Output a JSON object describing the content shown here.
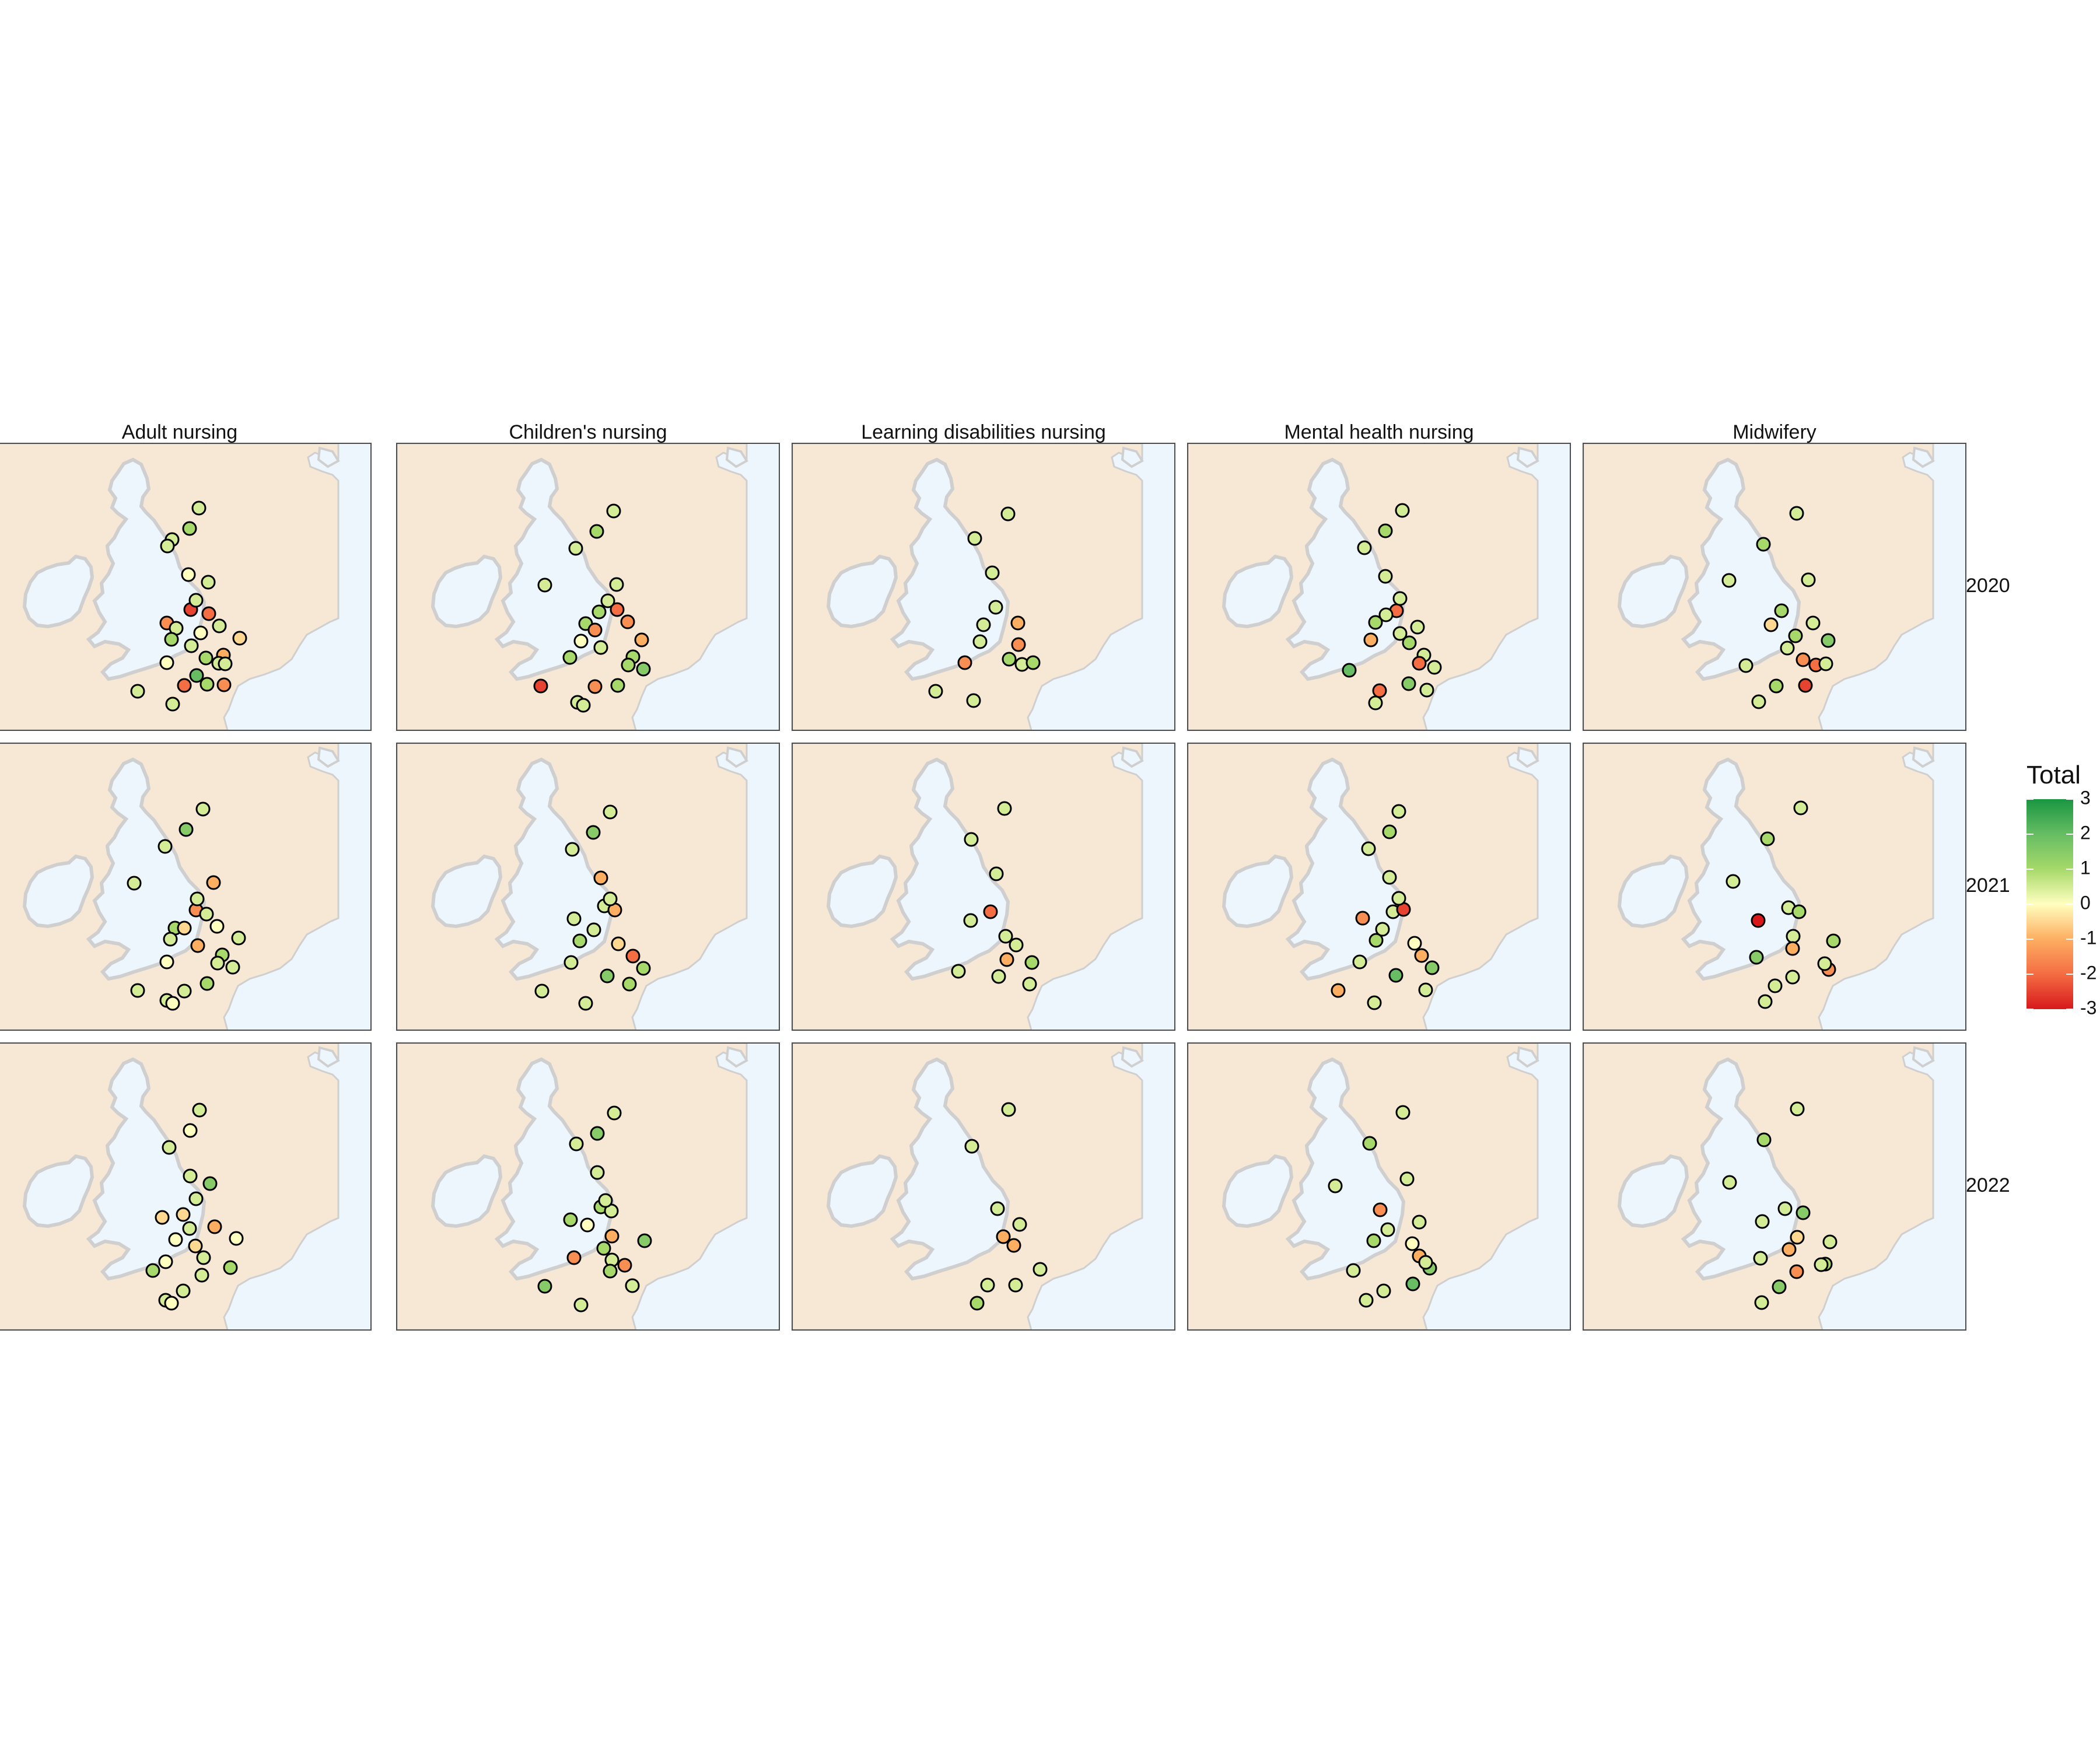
{
  "columns": [
    "Adult nursing",
    "Children's nursing",
    "Learning disabilities nursing",
    "Mental health nursing",
    "Midwifery"
  ],
  "rows": [
    "2020",
    "2021",
    "2022"
  ],
  "legend": {
    "title": "Total",
    "ticks": [
      3,
      2,
      1,
      0,
      -1,
      -2,
      -3
    ],
    "tick_labels": [
      "3",
      "2",
      "1",
      "0",
      "-1",
      "-2",
      "-3"
    ],
    "range": [
      -3,
      3
    ]
  },
  "colors": {
    "sea": "#eef6fd",
    "land_mainland": "#f7e8d6",
    "uk_land": "#eef6fd",
    "coast": "#cfcfcf",
    "scale": [
      "#d7191c",
      "#f46d43",
      "#fdae61",
      "#ffffbf",
      "#a6d96a",
      "#66bd63",
      "#1a9641"
    ]
  },
  "chart_data": {
    "type": "scatter",
    "description_of_values": "Each map shows institutions as points coloured by Total on a diverging red-yellow-green scale",
    "xlabel": "",
    "ylabel": "",
    "facets": [
      {
        "column": "Adult nursing",
        "row": "2020",
        "values": [
          0.5,
          1,
          0.5,
          0.5,
          0,
          0.5,
          -2.5,
          -2,
          0.5,
          -1.5,
          0.5,
          0,
          1,
          0.5,
          -0.5,
          -1,
          1,
          0.5,
          2,
          1,
          0,
          0.5,
          -2,
          -1.5,
          0.5,
          0.5,
          0.5
        ]
      },
      {
        "column": "Adult nursing",
        "row": "2021",
        "values": [
          0.5,
          1.5,
          0.5,
          0.5,
          -1,
          -1.5,
          0.5,
          0,
          1,
          -0.5,
          0.5,
          -1,
          0.5,
          1,
          0.5,
          0.5,
          1,
          0,
          0.5,
          0.5,
          0.5,
          0,
          0.5
        ]
      },
      {
        "column": "Adult nursing",
        "row": "2022",
        "values": [
          0.5,
          0,
          0.5,
          0.5,
          1.5,
          -0.5,
          -1,
          -0.5,
          0.5,
          0,
          -0.5,
          0,
          0.5,
          1,
          0.5,
          0,
          1,
          0.5,
          0.5,
          0,
          0.5
        ]
      },
      {
        "column": "Children's nursing",
        "row": "2020",
        "values": [
          0.5,
          1,
          0.5,
          0.5,
          0.5,
          1,
          -2,
          -1.5,
          1,
          -1.5,
          0,
          0.5,
          -1,
          1,
          1.5,
          1,
          1,
          1,
          -2.5,
          -1.5,
          0.5,
          0.5,
          0.5
        ]
      },
      {
        "column": "Children's nursing",
        "row": "2021",
        "values": [
          0.5,
          1.5,
          0.5,
          -1,
          0.5,
          -1,
          0.5,
          0.5,
          1,
          -0.5,
          -2,
          1,
          1.5,
          0.5,
          0.5,
          1,
          0.5,
          0.5
        ]
      },
      {
        "column": "Children's nursing",
        "row": "2022",
        "values": [
          0.5,
          1.5,
          0.5,
          0.5,
          1,
          0.5,
          1,
          0,
          -1,
          1,
          1.5,
          0.5,
          -1.5,
          1,
          -1.5,
          1.5,
          0.5,
          0.5,
          0.5
        ]
      },
      {
        "column": "Learning disabilities nursing",
        "row": "2020",
        "values": [
          0.5,
          0.5,
          0.5,
          0.5,
          -1,
          0.5,
          0.5,
          -1.5,
          1,
          0.5,
          -1.5,
          0.5,
          0.5,
          1
        ]
      },
      {
        "column": "Learning disabilities nursing",
        "row": "2021",
        "values": [
          0.5,
          0.5,
          0.5,
          -2,
          0.5,
          0.5,
          0.5,
          -1,
          0.5,
          0.5,
          0.5,
          1
        ]
      },
      {
        "column": "Learning disabilities nursing",
        "row": "2022",
        "values": [
          0.5,
          0.5,
          0.5,
          0.5,
          -1,
          -1,
          0.5,
          0.5,
          0.5,
          1
        ]
      },
      {
        "column": "Mental health nursing",
        "row": "2020",
        "values": [
          0.5,
          1,
          0.5,
          0.5,
          -2,
          0.5,
          0.5,
          1,
          0.5,
          -1,
          1,
          0.5,
          0.5,
          -2,
          1.5,
          2,
          -2,
          0.5,
          0.5,
          0.5
        ]
      },
      {
        "column": "Mental health nursing",
        "row": "2021",
        "values": [
          0.5,
          1,
          0.5,
          0.5,
          0.5,
          -2.5,
          -1.5,
          0.5,
          1,
          0,
          -1,
          1.5,
          2,
          0.5,
          -1,
          0.5,
          0.5,
          0.5
        ]
      },
      {
        "column": "Mental health nursing",
        "row": "2022",
        "values": [
          0.5,
          1,
          0.5,
          0.5,
          -1.5,
          0.5,
          0.5,
          1,
          0,
          -1,
          1.5,
          2,
          0.5,
          0.5,
          0.5,
          0.5
        ]
      },
      {
        "column": "Midwifery",
        "row": "2020",
        "values": [
          0.5,
          1,
          0.5,
          0.5,
          1,
          0.5,
          -0.5,
          1,
          0.5,
          1.5,
          -1.5,
          -2,
          -2.5,
          0.5,
          1,
          0.5,
          0.5
        ]
      },
      {
        "column": "Midwifery",
        "row": "2021",
        "values": [
          0.5,
          1,
          0.5,
          0.5,
          1,
          -3,
          0.5,
          -1,
          1,
          -1.5,
          0.5,
          1.5,
          0.5,
          0.5,
          0.5
        ]
      },
      {
        "column": "Midwifery",
        "row": "2022",
        "values": [
          0.5,
          1,
          0.5,
          0.5,
          1.5,
          0.5,
          -0.5,
          -1,
          0.5,
          1,
          -1.5,
          0.5,
          1.5,
          0.5,
          0.5
        ]
      }
    ]
  }
}
